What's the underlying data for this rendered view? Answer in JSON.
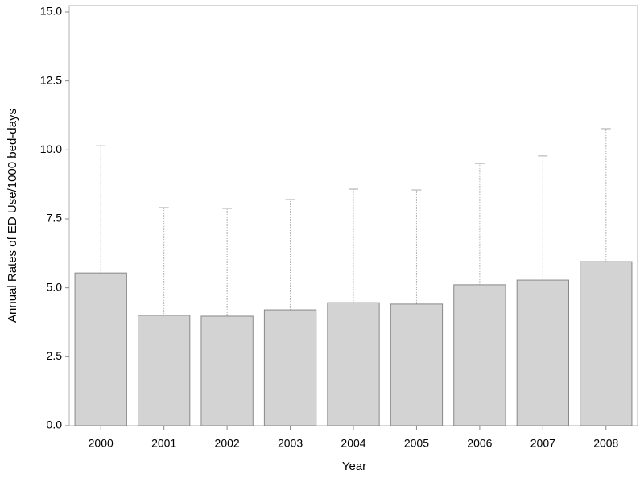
{
  "chart_data": {
    "type": "bar",
    "x_label": "Year",
    "y_label": "Annual Rates of ED Use/1000 bed-days",
    "categories": [
      "2000",
      "2001",
      "2002",
      "2003",
      "2004",
      "2005",
      "2006",
      "2007",
      "2008"
    ],
    "values": [
      5.54,
      4.0,
      3.97,
      4.2,
      4.46,
      4.41,
      5.11,
      5.28,
      5.95
    ],
    "errors": [
      4.61,
      3.91,
      3.91,
      4.0,
      4.12,
      4.14,
      4.4,
      4.5,
      4.82
    ],
    "color": "#d3d3d3",
    "ylim": [
      0,
      15
    ],
    "yticks": [
      {
        "value": 0,
        "label": "0.0"
      },
      2.5,
      {
        "value": 5,
        "label": "5.0"
      },
      7.5,
      {
        "value": 10,
        "label": "10.0"
      },
      12.5,
      {
        "value": 15,
        "label": "15.0"
      }
    ]
  }
}
